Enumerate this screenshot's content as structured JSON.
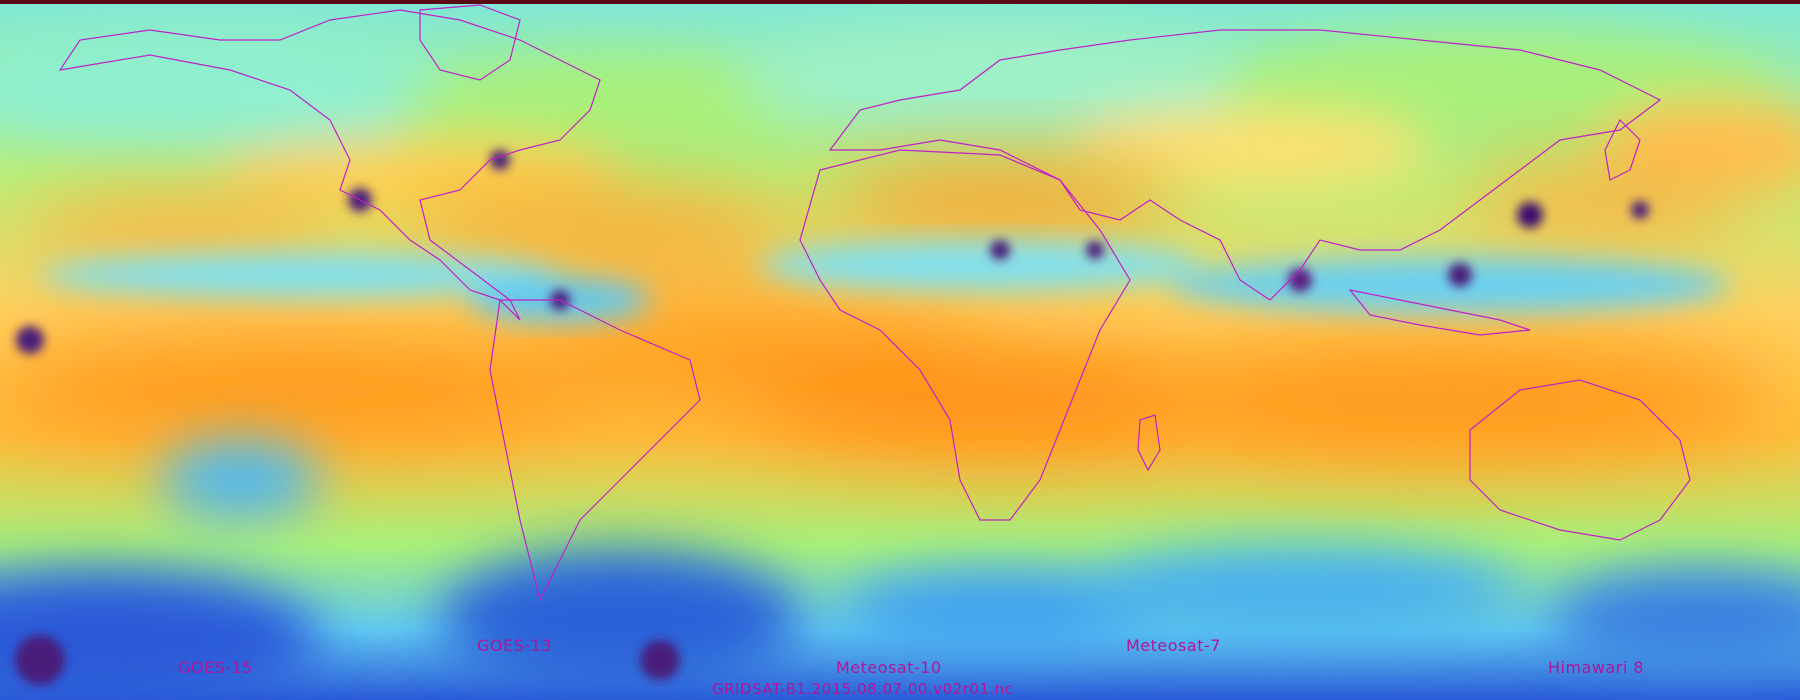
{
  "satellites": [
    {
      "id": "goes15",
      "label": "GOES-15"
    },
    {
      "id": "goes13",
      "label": "GOES-13"
    },
    {
      "id": "met10",
      "label": "Meteosat-10"
    },
    {
      "id": "met7",
      "label": "Meteosat-7"
    },
    {
      "id": "him8",
      "label": "Himawari 8"
    }
  ],
  "filename": "GRIDSAT-B1.2015.08.07.00.v02r01.nc",
  "colors": {
    "outline": "#c020c8",
    "label": "#b0159a",
    "deep_convection": "#4a1a7a",
    "cold_cloud": "#2a5ad8",
    "moist": "#7fe8f0",
    "mid": "#a8f07a",
    "dry": "#ffd84a",
    "very_dry": "#ff9a1a",
    "edge": "#5a0a14"
  }
}
